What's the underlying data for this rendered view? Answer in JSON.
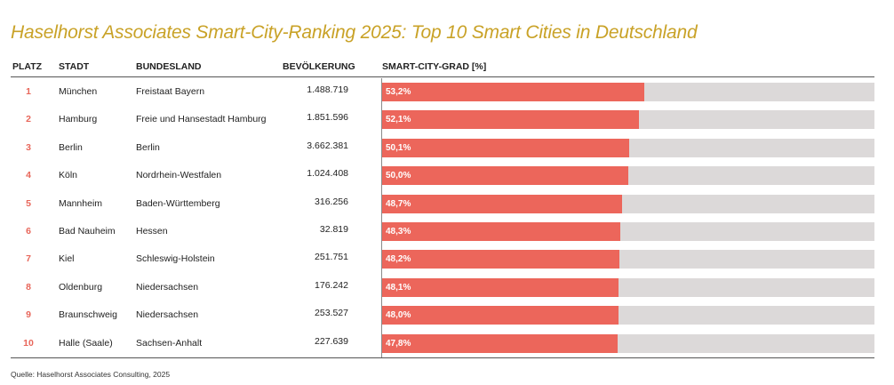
{
  "title": "Haselhorst Associates Smart-City-Ranking 2025: Top 10 Smart Cities in Deutschland",
  "headers": {
    "rank": "PLATZ",
    "city": "STADT",
    "state": "BUNDESLAND",
    "population": "BEVÖLKERUNG",
    "score": "SMART-CITY-GRAD [%]"
  },
  "source": "Quelle: Haselhorst Associates Consulting, 2025",
  "colors": {
    "title": "#c9a227",
    "bar": "#ec665b",
    "track": "#dcd9d9",
    "rank": "#e8665a"
  },
  "chart_data": {
    "type": "table",
    "title": "Haselhorst Associates Smart-City-Ranking 2025: Top 10 Smart Cities in Deutschland",
    "columns": [
      "PLATZ",
      "STADT",
      "BUNDESLAND",
      "BEVÖLKERUNG",
      "SMART-CITY-GRAD [%]"
    ],
    "xlim": [
      0,
      100
    ],
    "rows": [
      {
        "rank": "1",
        "city": "München",
        "state": "Freistaat Bayern",
        "population": "1.488.719",
        "label": "53,2%",
        "value": 53.2
      },
      {
        "rank": "2",
        "city": "Hamburg",
        "state": "Freie und Hansestadt Hamburg",
        "population": "1.851.596",
        "label": "52,1%",
        "value": 52.1
      },
      {
        "rank": "3",
        "city": "Berlin",
        "state": "Berlin",
        "population": "3.662.381",
        "label": "50,1%",
        "value": 50.1
      },
      {
        "rank": "4",
        "city": "Köln",
        "state": "Nordrhein-Westfalen",
        "population": "1.024.408",
        "label": "50,0%",
        "value": 50.0
      },
      {
        "rank": "5",
        "city": "Mannheim",
        "state": "Baden-Württemberg",
        "population": "316.256",
        "label": "48,7%",
        "value": 48.7
      },
      {
        "rank": "6",
        "city": "Bad Nauheim",
        "state": "Hessen",
        "population": "32.819",
        "label": "48,3%",
        "value": 48.3
      },
      {
        "rank": "7",
        "city": "Kiel",
        "state": "Schleswig-Holstein",
        "population": "251.751",
        "label": "48,2%",
        "value": 48.2
      },
      {
        "rank": "8",
        "city": "Oldenburg",
        "state": "Niedersachsen",
        "population": "176.242",
        "label": "48,1%",
        "value": 48.1
      },
      {
        "rank": "9",
        "city": "Braunschweig",
        "state": "Niedersachsen",
        "population": "253.527",
        "label": "48,0%",
        "value": 48.0
      },
      {
        "rank": "10",
        "city": "Halle (Saale)",
        "state": "Sachsen-Anhalt",
        "population": "227.639",
        "label": "47,8%",
        "value": 47.8
      }
    ]
  }
}
